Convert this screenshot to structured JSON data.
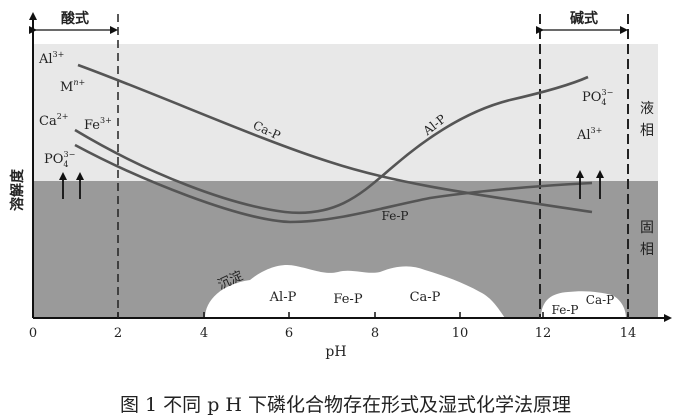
{
  "diagram": {
    "axis": {
      "x_label": "pH",
      "y_label": "溶解度",
      "x_ticks": [
        "0",
        "2",
        "4",
        "6",
        "8",
        "10",
        "12",
        "14"
      ]
    },
    "regions": {
      "acid_label": "酸式",
      "alkaline_label": "碱式",
      "liquid_label_1": "液",
      "liquid_label_2": "相",
      "solid_label_1": "固",
      "solid_label_2": "相"
    },
    "ions_left": {
      "al": "Al",
      "al_sup": "3+",
      "m": "M",
      "m_sup": "n+",
      "ca": "Ca",
      "ca_sup": "2+",
      "fe": "Fe",
      "fe_sup": "3+",
      "po": "PO",
      "po_sub": "4",
      "po_sup": "3−"
    },
    "ions_right": {
      "po": "PO",
      "po_sub": "4",
      "po_sup": "3−",
      "al": "Al",
      "al_sup": "3+"
    },
    "curves": {
      "ca_p": "Ca-P",
      "al_p": "Al-P",
      "fe_p": "Fe-P"
    },
    "precipitate": {
      "label": "沉淀",
      "al_p": "Al-P",
      "fe_p": "Fe-P",
      "ca_p": "Ca-P",
      "fe_p_right": "Fe-P",
      "ca_p_right": "Ca-P"
    },
    "colors": {
      "liquid_zone": "#e8e8e8",
      "solid_zone": "#9a9a9a",
      "curve": "#555555",
      "precipitate": "#ffffff"
    }
  },
  "caption": "图 1 不同 p H 下磷化合物存在形式及湿式化学法原理"
}
